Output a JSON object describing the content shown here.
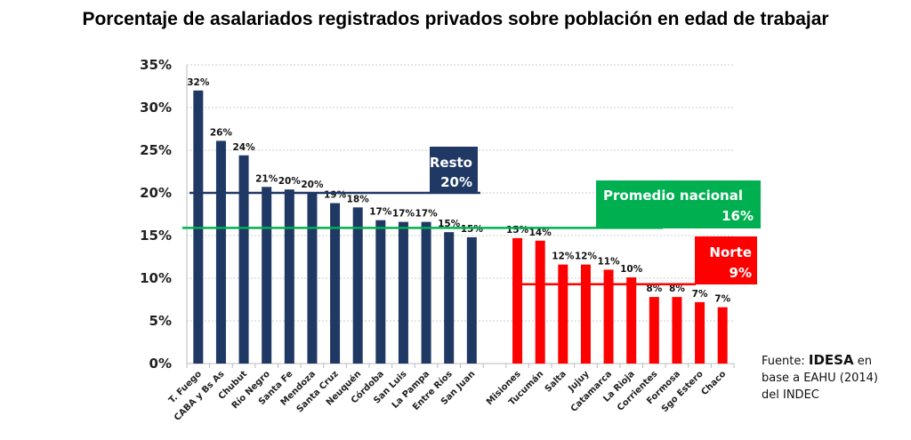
{
  "chart_data": {
    "type": "bar",
    "title": "Porcentaje de asalariados registrados privados sobre población en edad de trabajar",
    "xlabel": "",
    "ylabel": "",
    "ylim": [
      0,
      35
    ],
    "yticks": [
      "0%",
      "5%",
      "10%",
      "15%",
      "20%",
      "25%",
      "30%",
      "35%"
    ],
    "grid": true,
    "categories": [
      "T. Fuego",
      "CABA y Bs As",
      "Chubut",
      "Río Negro",
      "Santa Fe",
      "Mendoza",
      "Santa Cruz",
      "Neuquén",
      "Córdoba",
      "San Luis",
      "La Pampa",
      "Entre Ríos",
      "San Juan",
      "",
      "Misiones",
      "Tucumán",
      "Salta",
      "Jujuy",
      "Catamarca",
      "La Rioja",
      "Corrientes",
      "Formosa",
      "Sgo Estero",
      "Chaco"
    ],
    "values": [
      32.0,
      26.1,
      24.4,
      20.7,
      20.4,
      20.0,
      18.8,
      18.3,
      16.8,
      16.6,
      16.6,
      15.4,
      14.8,
      null,
      14.7,
      14.4,
      11.6,
      11.6,
      11.0,
      10.1,
      7.8,
      7.8,
      7.2,
      6.6
    ],
    "data_labels": [
      "32%",
      "26%",
      "24%",
      "21%",
      "20%",
      "20%",
      "19%",
      "18%",
      "17%",
      "17%",
      "17%",
      "15%",
      "15%",
      "",
      "15%",
      "14%",
      "12%",
      "12%",
      "11%",
      "10%",
      "8%",
      "8%",
      "7%",
      "7%"
    ],
    "bar_colors": {
      "resto": "#1f3864",
      "norte": "#ff0000"
    },
    "groups": [
      {
        "name": "Resto",
        "value_label": "20%",
        "value": 20,
        "color": "#1f3864",
        "range": [
          0,
          12
        ]
      },
      {
        "name": "Promedio nacional",
        "value_label": "16%",
        "value": 15.9,
        "color": "#00b050"
      },
      {
        "name": "Norte",
        "value_label": "9%",
        "value": 9.3,
        "color": "#ff0000",
        "range": [
          14,
          23
        ]
      }
    ]
  },
  "source": {
    "prefix": "Fuente: ",
    "org": "IDESA",
    "suffix": " en",
    "line2": "base a EAHU (2014)",
    "line3": "del INDEC"
  }
}
